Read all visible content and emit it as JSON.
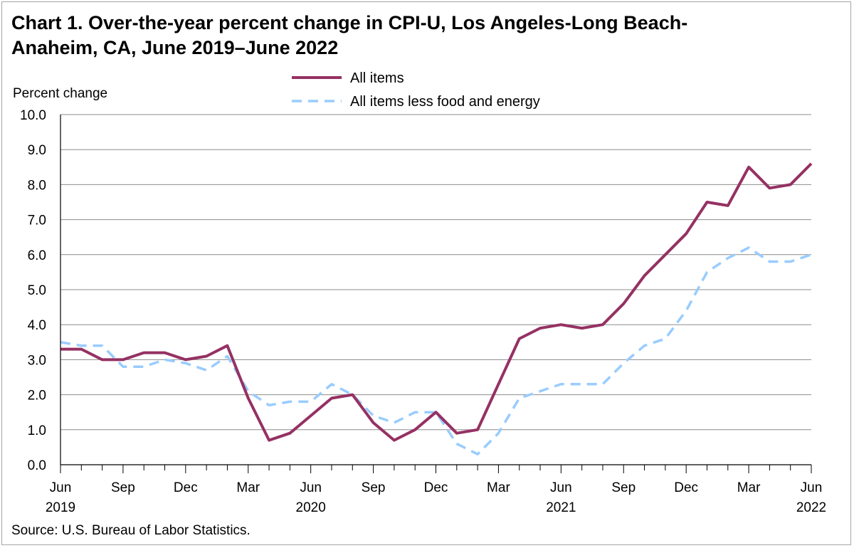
{
  "title_line1": "Chart 1. Over-the-year percent change in CPI-U, Los Angeles-Long Beach-",
  "title_line2": "Anaheim, CA, June 2019–June 2022",
  "source": "Source: U.S. Bureau of Labor Statistics.",
  "chart_data": {
    "type": "line",
    "title": "Chart 1. Over-the-year percent change in CPI-U, Los Angeles-Long Beach-Anaheim, CA, June 2019–June 2022",
    "ylabel": "Percent change",
    "xlabel": "",
    "ylim": [
      0,
      10
    ],
    "yticks": [
      "0.0",
      "1.0",
      "2.0",
      "3.0",
      "4.0",
      "5.0",
      "6.0",
      "7.0",
      "8.0",
      "9.0",
      "10.0"
    ],
    "grid": true,
    "legend": "top-center",
    "x": [
      "Jun 2019",
      "Jul 2019",
      "Aug 2019",
      "Sep 2019",
      "Oct 2019",
      "Nov 2019",
      "Dec 2019",
      "Jan 2020",
      "Feb 2020",
      "Mar 2020",
      "Apr 2020",
      "May 2020",
      "Jun 2020",
      "Jul 2020",
      "Aug 2020",
      "Sep 2020",
      "Oct 2020",
      "Nov 2020",
      "Dec 2020",
      "Jan 2021",
      "Feb 2021",
      "Mar 2021",
      "Apr 2021",
      "May 2021",
      "Jun 2021",
      "Jul 2021",
      "Aug 2021",
      "Sep 2021",
      "Oct 2021",
      "Nov 2021",
      "Dec 2021",
      "Jan 2022",
      "Feb 2022",
      "Mar 2022",
      "Apr 2022",
      "May 2022",
      "Jun 2022"
    ],
    "x_tick_labels": [
      {
        "month": "Jun",
        "year": "2019"
      },
      {
        "month": "Sep",
        "year": ""
      },
      {
        "month": "Dec",
        "year": ""
      },
      {
        "month": "Mar",
        "year": ""
      },
      {
        "month": "Jun",
        "year": "2020"
      },
      {
        "month": "Sep",
        "year": ""
      },
      {
        "month": "Dec",
        "year": ""
      },
      {
        "month": "Mar",
        "year": ""
      },
      {
        "month": "Jun",
        "year": "2021"
      },
      {
        "month": "Sep",
        "year": ""
      },
      {
        "month": "Dec",
        "year": ""
      },
      {
        "month": "Mar",
        "year": ""
      },
      {
        "month": "Jun",
        "year": "2022"
      }
    ],
    "series": [
      {
        "name": "All items",
        "color": "#953163",
        "style": "solid",
        "values": [
          3.3,
          3.3,
          3.0,
          3.0,
          3.2,
          3.2,
          3.0,
          3.1,
          3.4,
          1.9,
          0.7,
          0.9,
          1.4,
          1.9,
          2.0,
          1.2,
          0.7,
          1.0,
          1.5,
          0.9,
          1.0,
          2.3,
          3.6,
          3.9,
          4.0,
          3.9,
          4.0,
          4.6,
          5.4,
          6.0,
          6.6,
          7.5,
          7.4,
          8.5,
          7.9,
          8.0,
          8.6
        ]
      },
      {
        "name": "All items less food and energy",
        "color": "#99ccff",
        "style": "dashed",
        "values": [
          3.5,
          3.4,
          3.4,
          2.8,
          2.8,
          3.0,
          2.9,
          2.7,
          3.1,
          2.1,
          1.7,
          1.8,
          1.8,
          2.3,
          2.0,
          1.4,
          1.2,
          1.5,
          1.5,
          0.6,
          0.3,
          0.9,
          1.9,
          2.1,
          2.3,
          2.3,
          2.3,
          2.9,
          3.4,
          3.6,
          4.4,
          5.5,
          5.9,
          6.2,
          5.8,
          5.8,
          6.0
        ]
      }
    ]
  }
}
